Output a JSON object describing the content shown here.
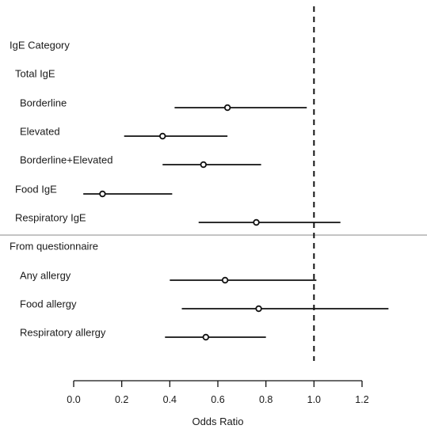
{
  "chart_data": {
    "type": "forest",
    "xlabel": "Odds Ratio",
    "xlim": [
      0.0,
      1.2
    ],
    "xticks": [
      "0.0",
      "0.2",
      "0.4",
      "0.6",
      "0.8",
      "1.0",
      "1.2"
    ],
    "reference_line": 1.0,
    "rows": [
      {
        "label": "IgE Category",
        "level": 0
      },
      {
        "label": "Total IgE",
        "level": 1
      },
      {
        "label": "Borderline",
        "level": 2,
        "or": 0.64,
        "ci": [
          0.42,
          0.97
        ]
      },
      {
        "label": "Elevated",
        "level": 2,
        "or": 0.37,
        "ci": [
          0.21,
          0.64
        ]
      },
      {
        "label": "Borderline+Elevated",
        "level": 2,
        "or": 0.54,
        "ci": [
          0.37,
          0.78
        ]
      },
      {
        "label": "Food IgE",
        "level": 1,
        "or": 0.12,
        "ci": [
          0.04,
          0.41
        ]
      },
      {
        "label": "Respiratory IgE",
        "level": 1,
        "or": 0.76,
        "ci": [
          0.52,
          1.11
        ]
      },
      {
        "label": "From questionnaire",
        "level": 0,
        "separator_before": true
      },
      {
        "label": "Any allergy",
        "level": 2,
        "or": 0.63,
        "ci": [
          0.4,
          1.01
        ]
      },
      {
        "label": "Food allergy",
        "level": 2,
        "or": 0.77,
        "ci": [
          0.45,
          1.31
        ]
      },
      {
        "label": "Respiratory allergy",
        "level": 2,
        "or": 0.55,
        "ci": [
          0.38,
          0.8
        ]
      }
    ]
  }
}
